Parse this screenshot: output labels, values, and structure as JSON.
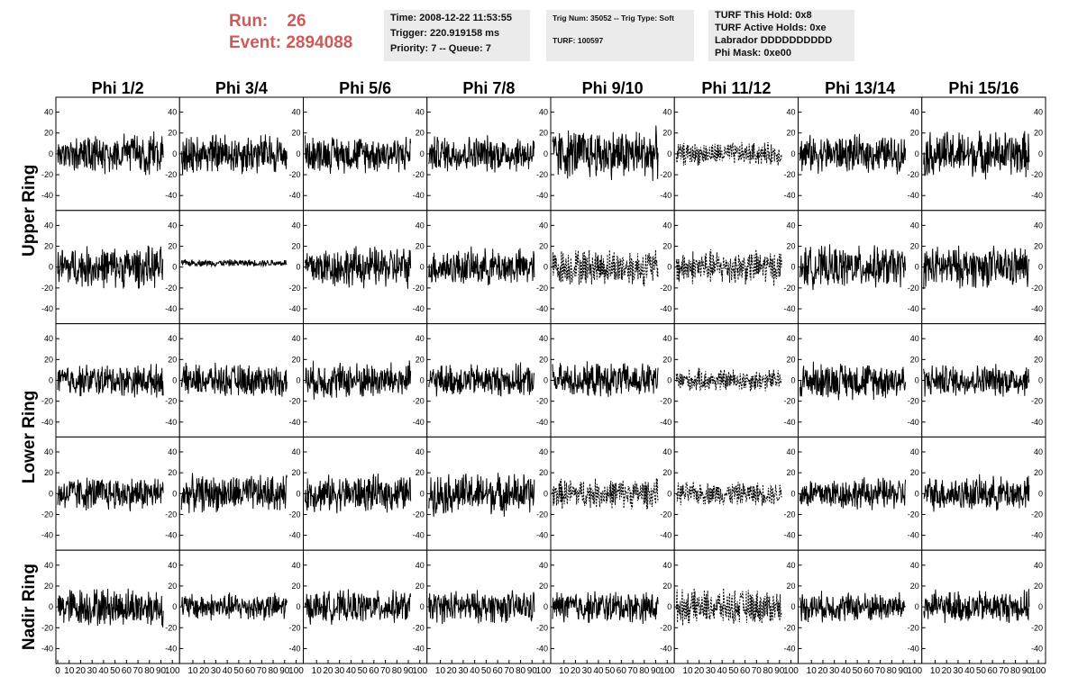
{
  "header": {
    "run_label": "Run:",
    "run_value": "26",
    "event_label": "Event:",
    "event_value": "2894088"
  },
  "time_panel": {
    "time": "Time: 2008-12-22 11:53:55",
    "trigger": "Trigger: 220.919158 ms",
    "priority": "Priority: 7 -- Queue: 7"
  },
  "trig_panel": {
    "trig": "Trig Num: 35052 -- Trig Type: Soft",
    "turf": "TURF: 100597"
  },
  "turf_panel": {
    "this_hold": "TURF This Hold: 0x8",
    "active_holds": "TURF Active Holds: 0xe",
    "labrador": "Labrador DDDDDDDDDD",
    "phi_mask": "Phi Mask: 0xe00"
  },
  "colors": {
    "header_red": "#d05a58",
    "panel_bg": "#ebebeb",
    "trace": "#000000"
  },
  "chart_data": {
    "type": "line",
    "columns": [
      "Phi 1/2",
      "Phi 3/4",
      "Phi 5/6",
      "Phi 7/8",
      "Phi 9/10",
      "Phi 11/12",
      "Phi 13/14",
      "Phi 15/16"
    ],
    "rows": [
      "Upper Ring",
      "Upper Ring",
      "Lower Ring",
      "Lower Ring",
      "Nadir Ring"
    ],
    "row_titles": [
      "Upper Ring",
      "Lower Ring",
      "Nadir Ring"
    ],
    "xlim": [
      0,
      100
    ],
    "ylim": [
      -50,
      50
    ],
    "y_ticks": [
      -40,
      -20,
      0,
      20,
      40
    ],
    "x_ticks": [
      0,
      10,
      20,
      30,
      40,
      50,
      60,
      70,
      80,
      90,
      100
    ],
    "samples_per_trace": 260,
    "trace_amplitude": [
      [
        18,
        18,
        16,
        16,
        22,
        10,
        16,
        20
      ],
      [
        18,
        3,
        18,
        16,
        16,
        15,
        18,
        18
      ],
      [
        14,
        14,
        16,
        14,
        15,
        10,
        16,
        14
      ],
      [
        15,
        16,
        16,
        18,
        13,
        10,
        14,
        15
      ],
      [
        17,
        12,
        14,
        14,
        14,
        15,
        13,
        14
      ]
    ],
    "dashed_traces": [
      [
        0,
        5
      ],
      [
        1,
        4
      ],
      [
        1,
        5
      ],
      [
        2,
        5
      ],
      [
        3,
        4
      ],
      [
        3,
        5
      ],
      [
        4,
        5
      ]
    ]
  }
}
